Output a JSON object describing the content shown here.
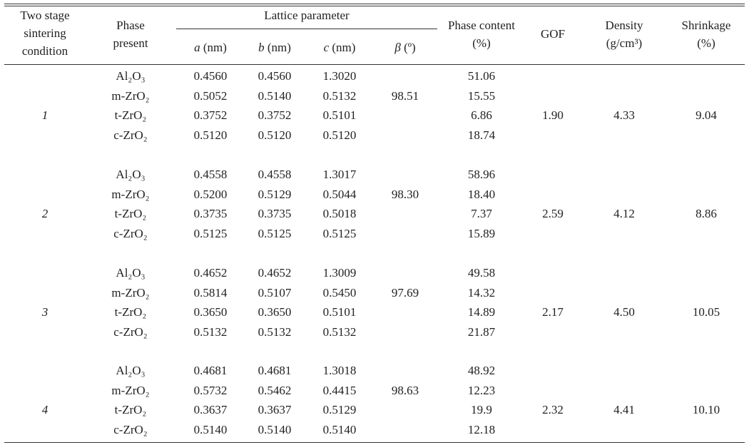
{
  "header": {
    "condition": [
      "Two stage",
      "sintering",
      "condition"
    ],
    "phase": [
      "Phase",
      "present"
    ],
    "lattice": "Lattice parameter",
    "a": {
      "symbol": "a",
      "unit": "(nm)"
    },
    "b": {
      "symbol": "b",
      "unit": "(nm)"
    },
    "c": {
      "symbol": "c",
      "unit": "(nm)"
    },
    "beta": {
      "symbol": "β",
      "unit": "(º)"
    },
    "content": [
      "Phase content",
      "(%)"
    ],
    "gof": "GOF",
    "density": [
      "Density",
      "(g/cm³)"
    ],
    "shrinkage": [
      "Shrinkage",
      "(%)"
    ]
  },
  "groups": [
    {
      "condition": "1",
      "beta": "98.51",
      "gof": "1.90",
      "density": "4.33",
      "shrinkage": "9.04",
      "rows": [
        {
          "phase": "Al₂O₃",
          "a": "0.4560",
          "b": "0.4560",
          "c": "1.3020",
          "content": "51.06"
        },
        {
          "phase": "m-ZrO₂",
          "a": "0.5052",
          "b": "0.5140",
          "c": "0.5132",
          "content": "15.55"
        },
        {
          "phase": "t-ZrO₂",
          "a": "0.3752",
          "b": "0.3752",
          "c": "0.5101",
          "content": "6.86"
        },
        {
          "phase": "c-ZrO₂",
          "a": "0.5120",
          "b": "0.5120",
          "c": "0.5120",
          "content": "18.74"
        }
      ]
    },
    {
      "condition": "2",
      "beta": "98.30",
      "gof": "2.59",
      "density": "4.12",
      "shrinkage": "8.86",
      "rows": [
        {
          "phase": "Al₂O₃",
          "a": "0.4558",
          "b": "0.4558",
          "c": "1.3017",
          "content": "58.96"
        },
        {
          "phase": "m-ZrO₂",
          "a": "0.5200",
          "b": "0.5129",
          "c": "0.5044",
          "content": "18.40"
        },
        {
          "phase": "t-ZrO₂",
          "a": "0.3735",
          "b": "0.3735",
          "c": "0.5018",
          "content": "7.37"
        },
        {
          "phase": "c-ZrO₂",
          "a": "0.5125",
          "b": "0.5125",
          "c": "0.5125",
          "content": "15.89"
        }
      ]
    },
    {
      "condition": "3",
      "beta": "97.69",
      "gof": "2.17",
      "density": "4.50",
      "shrinkage": "10.05",
      "rows": [
        {
          "phase": "Al₂O₃",
          "a": "0.4652",
          "b": "0.4652",
          "c": "1.3009",
          "content": "49.58"
        },
        {
          "phase": "m-ZrO₂",
          "a": "0.5814",
          "b": "0.5107",
          "c": "0.5450",
          "content": "14.32"
        },
        {
          "phase": "t-ZrO₂",
          "a": "0.3650",
          "b": "0.3650",
          "c": "0.5101",
          "content": "14.89"
        },
        {
          "phase": "c-ZrO₂",
          "a": "0.5132",
          "b": "0.5132",
          "c": "0.5132",
          "content": "21.87"
        }
      ]
    },
    {
      "condition": "4",
      "beta": "98.63",
      "gof": "2.32",
      "density": "4.41",
      "shrinkage": "10.10",
      "rows": [
        {
          "phase": "Al₂O₃",
          "a": "0.4681",
          "b": "0.4681",
          "c": "1.3018",
          "content": "48.92"
        },
        {
          "phase": "m-ZrO₂",
          "a": "0.5732",
          "b": "0.5462",
          "c": "0.4415",
          "content": "12.23"
        },
        {
          "phase": "t-ZrO₂",
          "a": "0.3637",
          "b": "0.3637",
          "c": "0.5129",
          "content": "19.9"
        },
        {
          "phase": "c-ZrO₂",
          "a": "0.5140",
          "b": "0.5140",
          "c": "0.5140",
          "content": "12.18"
        }
      ]
    }
  ]
}
